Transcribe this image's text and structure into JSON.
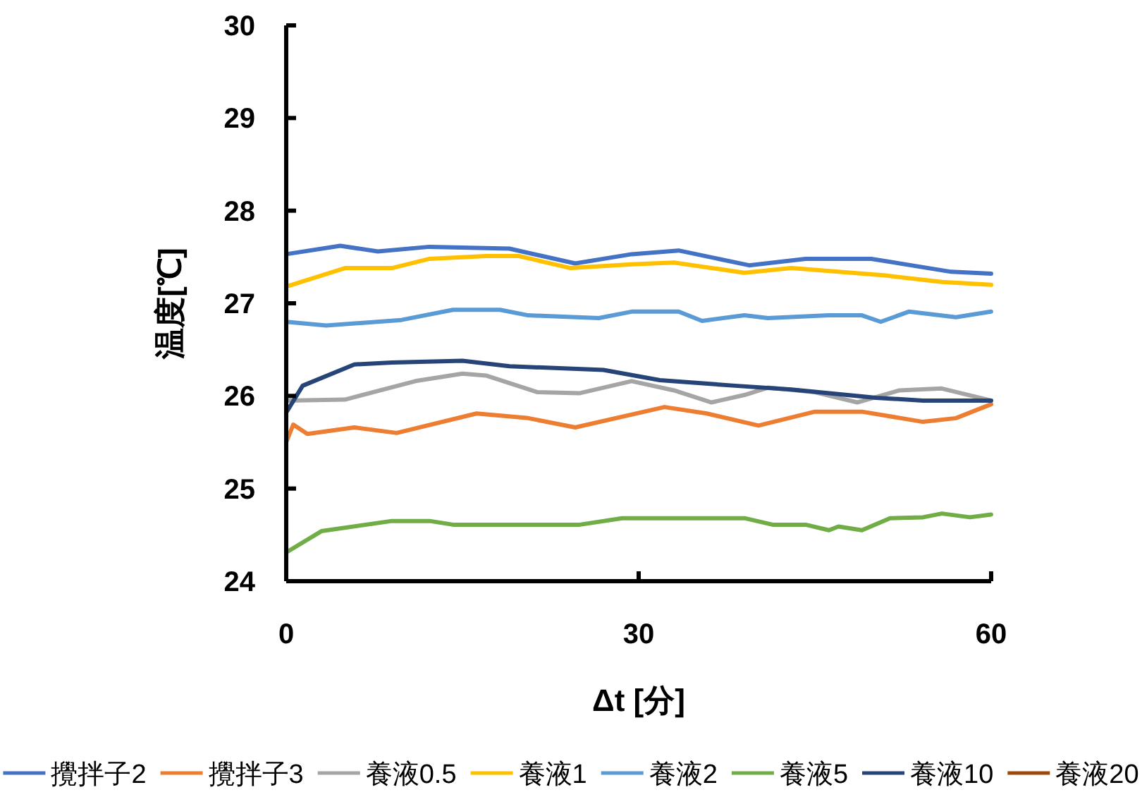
{
  "chart_data": {
    "type": "line",
    "xlabel": "Δt [分]",
    "ylabel": "温度[℃]",
    "xlim": [
      0,
      60
    ],
    "xticks": [
      0,
      30,
      60
    ],
    "ylim": [
      24,
      30
    ],
    "yticks": [
      24,
      25,
      26,
      27,
      28,
      29,
      30
    ],
    "grid": false,
    "legend": "bottom",
    "series": [
      {
        "name": "攪拌子2",
        "color": "#4472c4",
        "x": [
          0,
          4.6,
          7.8,
          12.2,
          19.0,
          24.6,
          29.4,
          33.4,
          39.4,
          44.2,
          49.8,
          56.6,
          60
        ],
        "values": [
          27.53,
          27.62,
          27.56,
          27.61,
          27.59,
          27.43,
          27.53,
          27.57,
          27.41,
          27.48,
          27.48,
          27.34,
          27.32
        ]
      },
      {
        "name": "攪拌子3",
        "color": "#ed7d31",
        "x": [
          0,
          0.6,
          1.8,
          5.8,
          9.4,
          16.2,
          20.6,
          24.6,
          32.2,
          35.8,
          40.2,
          45.0,
          49.0,
          54.2,
          57.0,
          60
        ],
        "values": [
          25.5,
          25.69,
          25.59,
          25.66,
          25.6,
          25.81,
          25.76,
          25.66,
          25.88,
          25.81,
          25.68,
          25.83,
          25.83,
          25.72,
          25.76,
          25.91
        ]
      },
      {
        "name": "養液0.5",
        "color": "#a5a5a5",
        "x": [
          0,
          5.0,
          11.0,
          15.0,
          17.0,
          21.4,
          25.0,
          29.4,
          33.0,
          36.2,
          39.0,
          41.0,
          45.0,
          48.6,
          52.2,
          55.8,
          60
        ],
        "values": [
          25.95,
          25.96,
          26.16,
          26.24,
          26.22,
          26.04,
          26.03,
          26.16,
          26.06,
          25.93,
          26.01,
          26.09,
          26.04,
          25.93,
          26.06,
          26.08,
          25.95
        ]
      },
      {
        "name": "養液1",
        "color": "#ffc000",
        "x": [
          0,
          5.0,
          9.0,
          12.2,
          17.0,
          19.8,
          24.2,
          29.4,
          33.0,
          39.0,
          43.0,
          47.0,
          51.0,
          55.8,
          60
        ],
        "values": [
          27.18,
          27.38,
          27.38,
          27.48,
          27.51,
          27.51,
          27.38,
          27.42,
          27.44,
          27.33,
          27.38,
          27.34,
          27.3,
          27.23,
          27.2
        ]
      },
      {
        "name": "養液2",
        "color": "#5b9bd5",
        "x": [
          0,
          3.4,
          9.8,
          14.2,
          18.2,
          20.6,
          26.6,
          29.4,
          33.4,
          35.4,
          39.0,
          41.0,
          46.2,
          49.0,
          50.6,
          53.0,
          57.0,
          60
        ],
        "values": [
          26.8,
          26.76,
          26.82,
          26.93,
          26.93,
          26.87,
          26.84,
          26.91,
          26.91,
          26.81,
          26.87,
          26.84,
          26.87,
          26.87,
          26.8,
          26.91,
          26.85,
          26.91
        ]
      },
      {
        "name": "養液5",
        "color": "#70ad47",
        "x": [
          0,
          3.0,
          9.0,
          12.2,
          14.2,
          25.0,
          28.6,
          39.0,
          41.4,
          44.2,
          46.2,
          47.0,
          49.0,
          51.4,
          54.2,
          55.8,
          58.2,
          60
        ],
        "values": [
          24.31,
          24.54,
          24.65,
          24.65,
          24.61,
          24.61,
          24.68,
          24.68,
          24.61,
          24.61,
          24.55,
          24.59,
          24.55,
          24.68,
          24.69,
          24.73,
          24.69,
          24.72
        ]
      },
      {
        "name": "養液10",
        "color": "#264478",
        "x": [
          0,
          1.4,
          5.8,
          9.0,
          15.0,
          19.0,
          27.0,
          31.8,
          38.2,
          43.0,
          50.2,
          54.2,
          60
        ],
        "values": [
          25.82,
          26.11,
          26.34,
          26.36,
          26.38,
          26.32,
          26.28,
          26.17,
          26.11,
          26.07,
          25.98,
          25.95,
          25.95
        ]
      },
      {
        "name": "養液20",
        "color": "#9e480e"
      }
    ]
  }
}
